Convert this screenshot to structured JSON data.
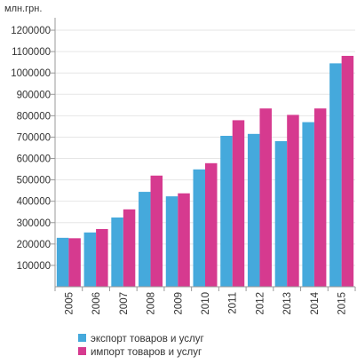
{
  "chart_data": {
    "type": "bar",
    "unit_label": "млн.грн.",
    "categories": [
      "2005",
      "2006",
      "2007",
      "2008",
      "2009",
      "2010",
      "2011",
      "2012",
      "2013",
      "2014",
      "2015"
    ],
    "series": [
      {
        "name": "экспорт товаров и услуг",
        "color": "#45a9dc",
        "values": [
          229000,
          254000,
          324000,
          444000,
          423000,
          549000,
          706000,
          715000,
          681000,
          770000,
          1045000
        ]
      },
      {
        "name": "импорт товаров и услуг",
        "color": "#d63a8f",
        "values": [
          227000,
          270000,
          362000,
          520000,
          437000,
          578000,
          779000,
          834000,
          804000,
          834000,
          1080000
        ]
      }
    ],
    "y_ticks": [
      "100000",
      "200000",
      "300000",
      "400000",
      "500000",
      "600000",
      "700000",
      "800000",
      "900000",
      "1000000",
      "1100000",
      "1200000"
    ],
    "ylim": [
      0,
      1250000
    ],
    "grid": true,
    "legend_position": "bottom-left"
  }
}
